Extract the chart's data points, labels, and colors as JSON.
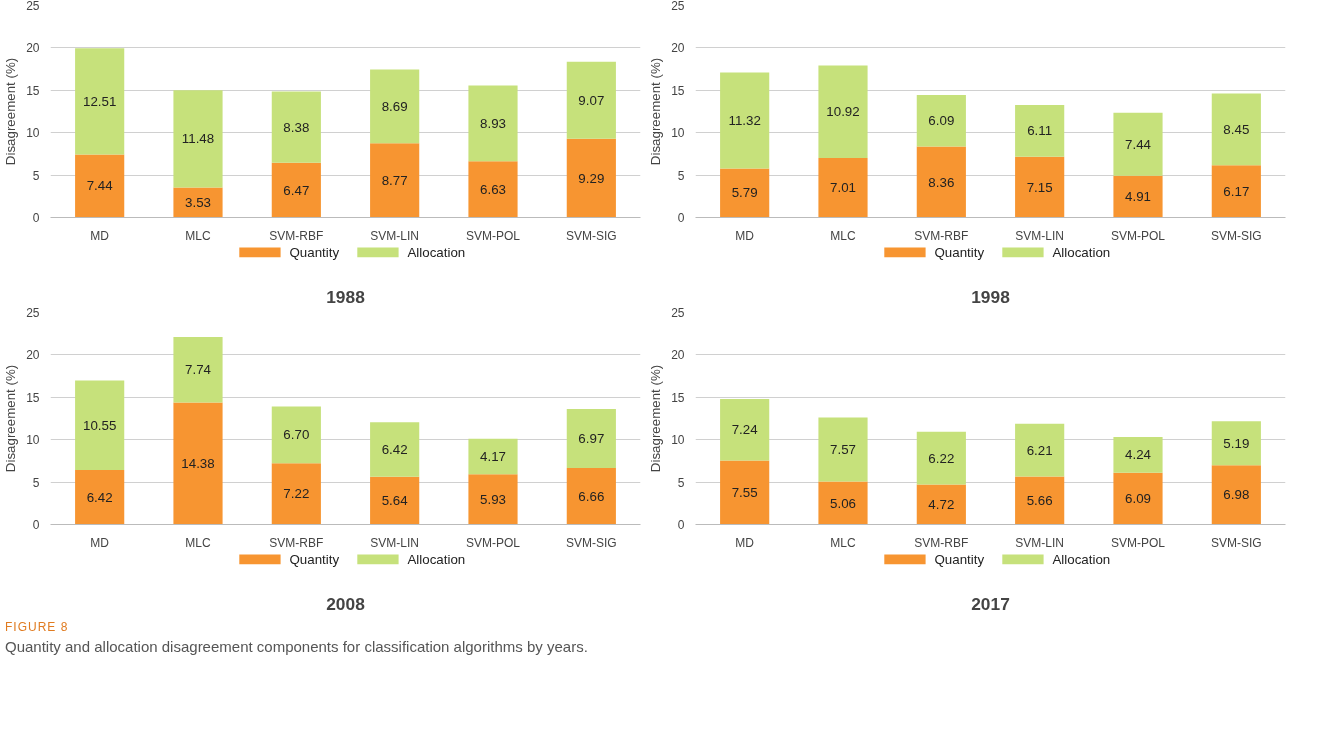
{
  "chart_data": [
    {
      "type": "bar",
      "stacked": true,
      "title": "1988",
      "ylabel": "Disagreement (%)",
      "categories": [
        "MD",
        "MLC",
        "SVM-RBF",
        "SVM-LIN",
        "SVM-POL",
        "SVM-SIG"
      ],
      "ylim": [
        0,
        25
      ],
      "yticks": [
        0,
        5,
        10,
        15,
        20,
        25
      ],
      "grid": "y",
      "legend": "bottom",
      "series": [
        {
          "name": "Quantity",
          "color": "#f79531",
          "values": [
            7.44,
            3.53,
            6.47,
            8.77,
            6.63,
            9.29
          ],
          "value_labels": [
            "7.44",
            "3.53",
            "6.47",
            "8.77",
            "6.63",
            "9.29"
          ]
        },
        {
          "name": "Allocation",
          "color": "#c6e17b",
          "values": [
            12.51,
            11.48,
            8.38,
            8.69,
            8.93,
            9.07
          ],
          "value_labels": [
            "12.51",
            "11.48",
            "8.38",
            "8.69",
            "8.93",
            "9.07"
          ]
        }
      ]
    },
    {
      "type": "bar",
      "stacked": true,
      "title": "1998",
      "ylabel": "Disagreement (%)",
      "categories": [
        "MD",
        "MLC",
        "SVM-RBF",
        "SVM-LIN",
        "SVM-POL",
        "SVM-SIG"
      ],
      "ylim": [
        0,
        25
      ],
      "yticks": [
        0,
        5,
        10,
        15,
        20,
        25
      ],
      "grid": "y",
      "legend": "bottom",
      "series": [
        {
          "name": "Quantity",
          "color": "#f79531",
          "values": [
            5.79,
            7.01,
            8.36,
            7.15,
            4.91,
            6.17
          ],
          "value_labels": [
            "5.79",
            "7.01",
            "8.36",
            "7.15",
            "4.91",
            "6.17"
          ]
        },
        {
          "name": "Allocation",
          "color": "#c6e17b",
          "values": [
            11.32,
            10.92,
            6.09,
            6.11,
            7.44,
            8.45
          ],
          "value_labels": [
            "11.32",
            "10.92",
            "6.09",
            "6.11",
            "7.44",
            "8.45"
          ]
        }
      ]
    },
    {
      "type": "bar",
      "stacked": true,
      "title": "2008",
      "ylabel": "Disagreement (%)",
      "categories": [
        "MD",
        "MLC",
        "SVM-RBF",
        "SVM-LIN",
        "SVM-POL",
        "SVM-SIG"
      ],
      "ylim": [
        0,
        25
      ],
      "yticks": [
        0,
        5,
        10,
        15,
        20,
        25
      ],
      "grid": "y",
      "legend": "bottom",
      "series": [
        {
          "name": "Quantity",
          "color": "#f79531",
          "values": [
            6.42,
            14.38,
            7.22,
            5.64,
            5.93,
            6.66
          ],
          "value_labels": [
            "6.42",
            "14.38",
            "7.22",
            "5.64",
            "5.93",
            "6.66"
          ]
        },
        {
          "name": "Allocation",
          "color": "#c6e17b",
          "values": [
            10.55,
            7.74,
            6.7,
            6.42,
            4.17,
            6.97
          ],
          "value_labels": [
            "10.55",
            "7.74",
            "6.70",
            "6.42",
            "4.17",
            "6.97"
          ]
        }
      ]
    },
    {
      "type": "bar",
      "stacked": true,
      "title": "2017",
      "ylabel": "Disagreement (%)",
      "categories": [
        "MD",
        "MLC",
        "SVM-RBF",
        "SVM-LIN",
        "SVM-POL",
        "SVM-SIG"
      ],
      "ylim": [
        0,
        25
      ],
      "yticks": [
        0,
        5,
        10,
        15,
        20,
        25
      ],
      "grid": "y",
      "legend": "bottom",
      "series": [
        {
          "name": "Quantity",
          "color": "#f79531",
          "values": [
            7.55,
            5.06,
            4.72,
            5.66,
            6.09,
            6.98
          ],
          "value_labels": [
            "7.55",
            "5.06",
            "4.72",
            "5.66",
            "6.09",
            "6.98"
          ]
        },
        {
          "name": "Allocation",
          "color": "#c6e17b",
          "values": [
            7.24,
            7.57,
            6.22,
            6.21,
            4.24,
            5.19
          ],
          "value_labels": [
            "7.24",
            "7.57",
            "6.22",
            "6.21",
            "4.24",
            "5.19"
          ]
        }
      ],
      "annotations": [
        "FIGURE 8",
        "Quantity and allocation disagreement components for classification algorithms by years."
      ]
    }
  ]
}
